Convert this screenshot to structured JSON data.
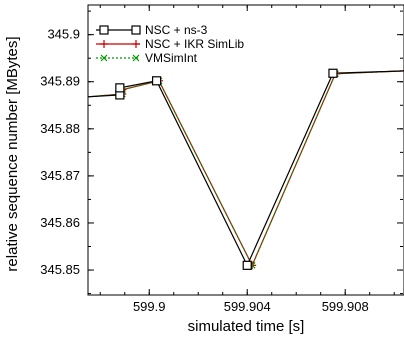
{
  "chart_data": {
    "type": "line",
    "xlabel": "simulated time [s]",
    "ylabel": "relative sequence number [MBytes]",
    "xlim": [
      599.8975,
      599.9104
    ],
    "ylim": [
      345.8447,
      345.9063
    ],
    "xticks": [
      599.9,
      599.904,
      599.908
    ],
    "xtick_labels": [
      "599.9",
      "599.904",
      "599.908"
    ],
    "yticks": [
      345.85,
      345.86,
      345.87,
      345.88,
      345.89,
      345.9
    ],
    "ytick_labels": [
      "345.85",
      "345.86",
      "345.87",
      "345.88",
      "345.89",
      "345.9"
    ],
    "grid": false,
    "legend_position": "top-left",
    "series": [
      {
        "name": "NSC + ns-3",
        "color": "#000000",
        "marker": "square",
        "dash": "",
        "x": [
          599.8975,
          599.8988,
          599.8988,
          599.9003,
          599.904,
          599.9075,
          599.9104
        ],
        "y": [
          345.8868,
          345.8872,
          345.8887,
          345.8902,
          345.851,
          345.8918,
          345.8923
        ],
        "marker_indices": [
          1,
          2,
          3,
          4,
          5
        ]
      },
      {
        "name": "NSC + IKR SimLib",
        "color": "#cc0000",
        "marker": "plus",
        "dash": "",
        "x": [
          599.8975,
          599.8989,
          599.8989,
          599.9004,
          599.9042,
          599.9076,
          599.9104
        ],
        "y": [
          345.8868,
          345.8874,
          345.8883,
          345.8902,
          345.851,
          345.8917,
          345.8923
        ],
        "marker_indices": [
          1,
          2,
          3,
          4,
          5
        ]
      },
      {
        "name": "VMSimInt",
        "color": "#009900",
        "marker": "x",
        "dash": "2,2",
        "x": [
          599.8975,
          599.8989,
          599.8989,
          599.9004,
          599.9042,
          599.9076,
          599.9104
        ],
        "y": [
          345.8868,
          345.8874,
          345.8883,
          345.8902,
          345.851,
          345.8917,
          345.8923
        ],
        "marker_indices": [
          1,
          2,
          3,
          4,
          5
        ]
      }
    ]
  }
}
